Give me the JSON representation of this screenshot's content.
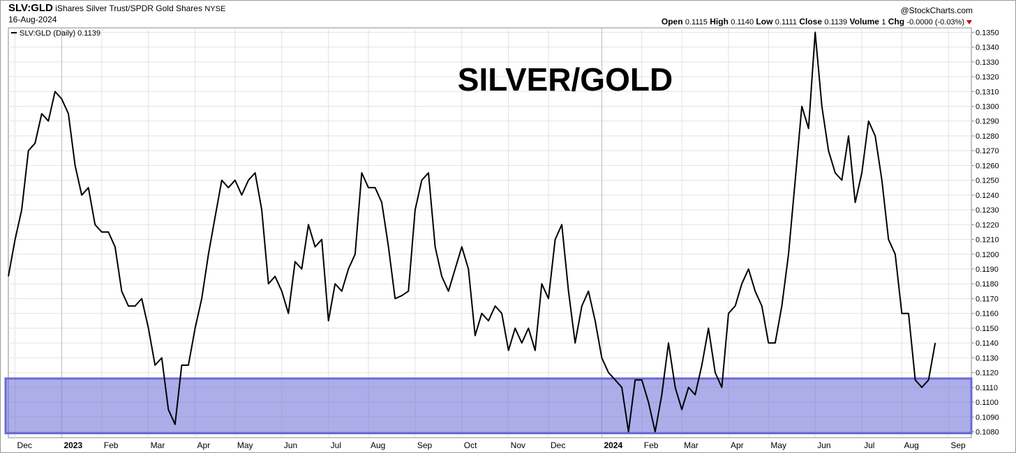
{
  "header": {
    "symbol": "SLV:GLD",
    "name": "iShares Silver Trust/SPDR Gold Shares",
    "exchange": "NYSE",
    "source": "@StockCharts.com",
    "date": "16-Aug-2024",
    "open_label": "Open",
    "open": "0.1115",
    "high_label": "High",
    "high": "0.1140",
    "low_label": "Low",
    "low": "0.1111",
    "close_label": "Close",
    "close": "0.1139",
    "volume_label": "Volume",
    "volume": "1",
    "chg_label": "Chg",
    "chg": "-0.0000 (-0.03%)"
  },
  "chart_data": {
    "type": "line",
    "annotation": "SILVER/GOLD",
    "categories": [
      null,
      "Dec",
      null,
      null,
      null,
      null,
      null,
      null,
      "2023",
      null,
      null,
      null,
      null,
      null,
      "Feb",
      null,
      null,
      null,
      null,
      null,
      null,
      "Mar",
      null,
      null,
      null,
      null,
      null,
      null,
      "Apr",
      null,
      null,
      null,
      null,
      null,
      "May",
      null,
      null,
      null,
      null,
      null,
      null,
      "Jun",
      null,
      null,
      null,
      null,
      null,
      null,
      "Jul",
      null,
      null,
      null,
      null,
      null,
      "Aug",
      null,
      null,
      null,
      null,
      null,
      null,
      "Sep",
      null,
      null,
      null,
      null,
      null,
      null,
      "Oct",
      null,
      null,
      null,
      null,
      null,
      null,
      "Nov",
      null,
      null,
      null,
      null,
      null,
      "Dec",
      null,
      null,
      null,
      null,
      null,
      null,
      null,
      "2024",
      null,
      null,
      null,
      null,
      null,
      "Feb",
      null,
      null,
      null,
      null,
      null,
      "Mar",
      null,
      null,
      null,
      null,
      null,
      null,
      "Apr",
      null,
      null,
      null,
      null,
      null,
      "May",
      null,
      null,
      null,
      null,
      null,
      null,
      "Jun",
      null,
      null,
      null,
      null,
      null,
      null,
      "Jul",
      null,
      null,
      null,
      null,
      null,
      "Aug",
      null,
      null,
      null,
      null,
      null,
      null,
      "Sep",
      null,
      null,
      null
    ],
    "series": [
      {
        "name": "SLV:GLD (Daily) 0.1139",
        "color": "#000000",
        "values": [
          0.1185,
          0.121,
          0.123,
          0.127,
          0.1275,
          0.1295,
          0.129,
          0.131,
          0.1305,
          0.1295,
          0.126,
          0.124,
          0.1245,
          0.122,
          0.1215,
          0.1215,
          0.1205,
          0.1175,
          0.1165,
          0.1165,
          0.117,
          0.115,
          0.1125,
          0.113,
          0.1095,
          0.1085,
          0.1125,
          0.1125,
          0.115,
          0.117,
          0.12,
          0.1225,
          0.125,
          0.1245,
          0.125,
          0.124,
          0.125,
          0.1255,
          0.123,
          0.118,
          0.1185,
          0.1175,
          0.116,
          0.1195,
          0.119,
          0.122,
          0.1205,
          0.121,
          0.1155,
          0.118,
          0.1175,
          0.119,
          0.12,
          0.1255,
          0.1245,
          0.1245,
          0.1235,
          0.1205,
          0.117,
          0.1172,
          0.1175,
          0.123,
          0.125,
          0.1255,
          0.1205,
          0.1185,
          0.1175,
          0.119,
          0.1205,
          0.119,
          0.1145,
          0.116,
          0.1155,
          0.1165,
          0.116,
          0.1135,
          0.115,
          0.114,
          0.115,
          0.1135,
          0.118,
          0.117,
          0.121,
          0.122,
          0.1175,
          0.114,
          0.1165,
          0.1175,
          0.1155,
          0.113,
          0.112,
          0.1115,
          0.111,
          0.108,
          0.1115,
          0.1115,
          0.11,
          0.108,
          0.1105,
          0.114,
          0.111,
          0.1095,
          0.111,
          0.1105,
          0.1125,
          0.115,
          0.112,
          0.111,
          0.116,
          0.1165,
          0.118,
          0.119,
          0.1175,
          0.1165,
          0.114,
          0.114,
          0.1165,
          0.12,
          0.125,
          0.13,
          0.1285,
          0.135,
          0.13,
          0.127,
          0.1255,
          0.125,
          0.128,
          0.1235,
          0.1255,
          0.129,
          0.128,
          0.125,
          0.121,
          0.12,
          0.116,
          0.116,
          0.1115,
          0.111,
          0.1115,
          0.114,
          null,
          null,
          null,
          null,
          null
        ]
      }
    ],
    "zone": {
      "from": 0.1079,
      "to": 0.1116,
      "color": "#6a6ad8"
    },
    "ylim": [
      0.1076,
      0.1353
    ],
    "yticks": [
      {
        "value": 0.108,
        "label": "0.1080"
      },
      {
        "value": 0.109,
        "label": "0.1090"
      },
      {
        "value": 0.11,
        "label": "0.1100"
      },
      {
        "value": 0.111,
        "label": "0.1110"
      },
      {
        "value": 0.112,
        "label": "0.1120"
      },
      {
        "value": 0.113,
        "label": "0.1130"
      },
      {
        "value": 0.114,
        "label": "0.1140"
      },
      {
        "value": 0.115,
        "label": "0.1150"
      },
      {
        "value": 0.116,
        "label": "0.1160"
      },
      {
        "value": 0.117,
        "label": "0.1170"
      },
      {
        "value": 0.118,
        "label": "0.1180"
      },
      {
        "value": 0.119,
        "label": "0.1190"
      },
      {
        "value": 0.12,
        "label": "0.1200"
      },
      {
        "value": 0.121,
        "label": "0.1210"
      },
      {
        "value": 0.122,
        "label": "0.1220"
      },
      {
        "value": 0.123,
        "label": "0.1230"
      },
      {
        "value": 0.124,
        "label": "0.1240"
      },
      {
        "value": 0.125,
        "label": "0.1250"
      },
      {
        "value": 0.126,
        "label": "0.1260"
      },
      {
        "value": 0.127,
        "label": "0.1270"
      },
      {
        "value": 0.128,
        "label": "0.1280"
      },
      {
        "value": 0.129,
        "label": "0.1290"
      },
      {
        "value": 0.13,
        "label": "0.1300"
      },
      {
        "value": 0.131,
        "label": "0.1310"
      },
      {
        "value": 0.132,
        "label": "0.1320"
      },
      {
        "value": 0.133,
        "label": "0.1330"
      },
      {
        "value": 0.134,
        "label": "0.1340"
      },
      {
        "value": 0.135,
        "label": "0.1350"
      }
    ],
    "grid": true,
    "annotation_color": "#2222dd"
  }
}
